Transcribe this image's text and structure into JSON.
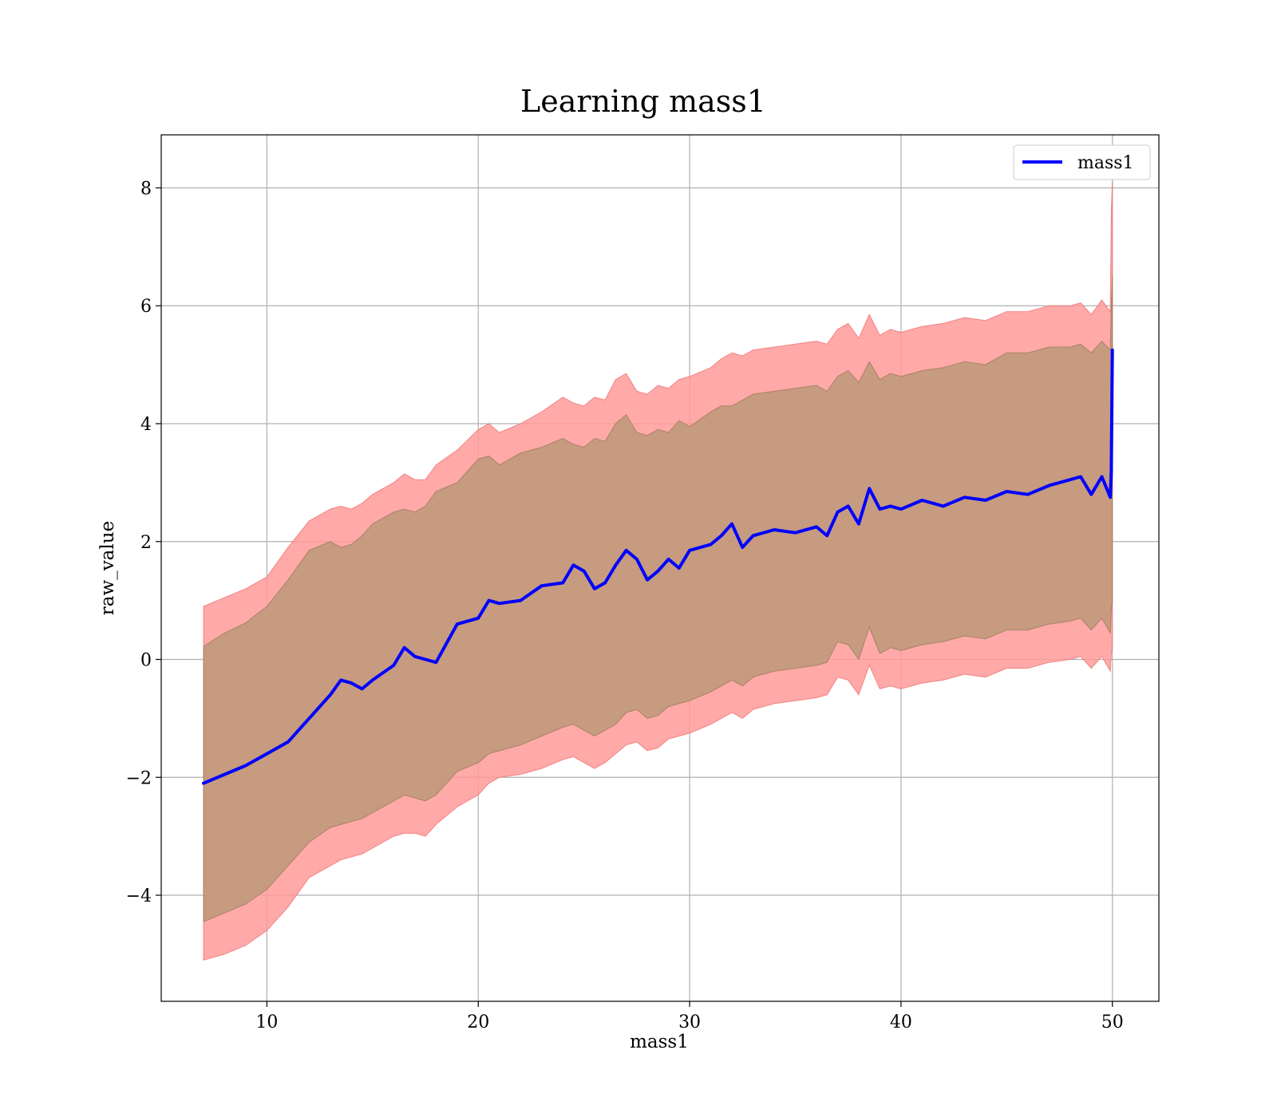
{
  "chart_data": {
    "type": "line",
    "title": "Learning mass1",
    "xlabel": "mass1",
    "ylabel": "raw_value",
    "xlim": [
      5,
      52.2
    ],
    "ylim": [
      -5.8,
      8.9
    ],
    "xticks": [
      10,
      20,
      30,
      40,
      50
    ],
    "yticks": [
      -4,
      -2,
      0,
      2,
      4,
      6,
      8
    ],
    "grid": true,
    "legend_position": "top-right",
    "colors": {
      "line": "#0000ff",
      "outer_band": "#ff9a9a",
      "inner_band": "#c49a7c",
      "grid": "#b0b0b0"
    },
    "series": [
      {
        "name": "mass1",
        "x": [
          7.0,
          8.0,
          9.0,
          10.0,
          11.0,
          12.0,
          13.0,
          13.5,
          14.0,
          14.5,
          15.0,
          16.0,
          16.5,
          17.0,
          17.5,
          18.0,
          19.0,
          20.0,
          20.5,
          21.0,
          22.0,
          23.0,
          24.0,
          24.5,
          25.0,
          25.5,
          26.0,
          26.5,
          27.0,
          27.5,
          28.0,
          28.5,
          29.0,
          29.5,
          30.0,
          31.0,
          31.5,
          32.0,
          32.5,
          33.0,
          34.0,
          35.0,
          36.0,
          36.5,
          37.0,
          37.5,
          38.0,
          38.5,
          39.0,
          39.5,
          40.0,
          41.0,
          42.0,
          43.0,
          44.0,
          45.0,
          46.0,
          47.0,
          48.0,
          48.5,
          49.0,
          49.5,
          49.9,
          49.95,
          50.0
        ],
        "values": [
          -2.1,
          -1.95,
          -1.8,
          -1.6,
          -1.4,
          -1.0,
          -0.6,
          -0.35,
          -0.4,
          -0.5,
          -0.35,
          -0.1,
          0.2,
          0.05,
          0.0,
          -0.05,
          0.6,
          0.7,
          1.0,
          0.95,
          1.0,
          1.25,
          1.3,
          1.6,
          1.5,
          1.2,
          1.3,
          1.6,
          1.85,
          1.7,
          1.35,
          1.5,
          1.7,
          1.55,
          1.85,
          1.95,
          2.1,
          2.3,
          1.9,
          2.1,
          2.2,
          2.15,
          2.25,
          2.1,
          2.5,
          2.6,
          2.3,
          2.9,
          2.55,
          2.6,
          2.55,
          2.7,
          2.6,
          2.75,
          2.7,
          2.85,
          2.8,
          2.95,
          3.05,
          3.1,
          2.8,
          3.1,
          2.75,
          3.2,
          5.25
        ],
        "inner_upper": [
          0.22,
          0.45,
          0.62,
          0.9,
          1.35,
          1.85,
          2.0,
          1.9,
          1.95,
          2.1,
          2.3,
          2.5,
          2.55,
          2.5,
          2.6,
          2.85,
          3.0,
          3.4,
          3.45,
          3.3,
          3.5,
          3.6,
          3.75,
          3.65,
          3.6,
          3.75,
          3.7,
          4.0,
          4.15,
          3.85,
          3.8,
          3.9,
          3.85,
          4.05,
          3.95,
          4.2,
          4.3,
          4.3,
          4.4,
          4.5,
          4.55,
          4.6,
          4.65,
          4.55,
          4.8,
          4.9,
          4.7,
          5.05,
          4.75,
          4.85,
          4.8,
          4.9,
          4.95,
          5.05,
          5.0,
          5.2,
          5.2,
          5.3,
          5.3,
          5.35,
          5.2,
          5.4,
          5.25,
          6.0,
          6.5
        ],
        "inner_lower": [
          -4.45,
          -4.3,
          -4.15,
          -3.9,
          -3.5,
          -3.1,
          -2.85,
          -2.8,
          -2.75,
          -2.7,
          -2.6,
          -2.4,
          -2.3,
          -2.35,
          -2.4,
          -2.3,
          -1.9,
          -1.75,
          -1.6,
          -1.55,
          -1.45,
          -1.3,
          -1.15,
          -1.1,
          -1.2,
          -1.3,
          -1.2,
          -1.1,
          -0.9,
          -0.85,
          -1.0,
          -0.95,
          -0.8,
          -0.75,
          -0.7,
          -0.55,
          -0.45,
          -0.35,
          -0.45,
          -0.3,
          -0.2,
          -0.15,
          -0.1,
          -0.05,
          0.3,
          0.25,
          0.0,
          0.55,
          0.1,
          0.2,
          0.15,
          0.25,
          0.3,
          0.4,
          0.35,
          0.5,
          0.5,
          0.6,
          0.65,
          0.7,
          0.5,
          0.7,
          0.45,
          0.85,
          1.0
        ],
        "outer_upper": [
          0.9,
          1.05,
          1.2,
          1.4,
          1.9,
          2.35,
          2.55,
          2.6,
          2.55,
          2.65,
          2.8,
          3.0,
          3.15,
          3.05,
          3.05,
          3.3,
          3.55,
          3.9,
          4.0,
          3.85,
          4.0,
          4.2,
          4.45,
          4.35,
          4.3,
          4.45,
          4.4,
          4.75,
          4.85,
          4.55,
          4.5,
          4.65,
          4.6,
          4.75,
          4.8,
          4.95,
          5.1,
          5.2,
          5.15,
          5.25,
          5.3,
          5.35,
          5.4,
          5.35,
          5.6,
          5.7,
          5.45,
          5.85,
          5.5,
          5.6,
          5.55,
          5.65,
          5.7,
          5.8,
          5.75,
          5.9,
          5.9,
          6.0,
          6.0,
          6.05,
          5.85,
          6.1,
          5.9,
          7.6,
          8.1
        ],
        "outer_lower": [
          -5.1,
          -5.0,
          -4.85,
          -4.6,
          -4.2,
          -3.7,
          -3.5,
          -3.4,
          -3.35,
          -3.3,
          -3.2,
          -3.0,
          -2.95,
          -2.95,
          -3.0,
          -2.8,
          -2.5,
          -2.3,
          -2.1,
          -2.0,
          -1.95,
          -1.85,
          -1.7,
          -1.65,
          -1.75,
          -1.85,
          -1.75,
          -1.6,
          -1.45,
          -1.4,
          -1.55,
          -1.5,
          -1.35,
          -1.3,
          -1.25,
          -1.1,
          -1.0,
          -0.9,
          -1.0,
          -0.85,
          -0.75,
          -0.7,
          -0.65,
          -0.6,
          -0.3,
          -0.35,
          -0.6,
          -0.1,
          -0.5,
          -0.45,
          -0.5,
          -0.4,
          -0.35,
          -0.25,
          -0.3,
          -0.15,
          -0.15,
          -0.05,
          0.0,
          0.05,
          -0.15,
          0.05,
          -0.2,
          0.1,
          0.2
        ]
      }
    ]
  }
}
